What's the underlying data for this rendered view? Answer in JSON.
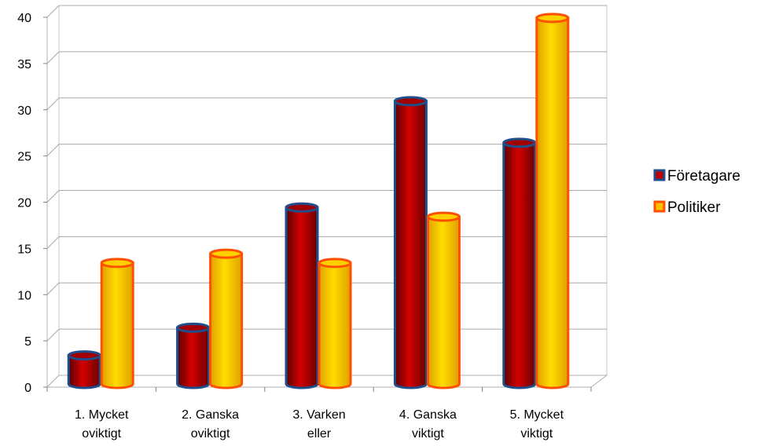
{
  "chart_data": {
    "type": "bar",
    "categories": [
      [
        "1. Mycket",
        "oviktigt"
      ],
      [
        "2. Ganska",
        "oviktigt"
      ],
      [
        "3. Varken",
        "eller"
      ],
      [
        "4. Ganska",
        "viktigt"
      ],
      [
        "5. Mycket",
        "viktigt"
      ]
    ],
    "series": [
      {
        "name": "Företagare",
        "values": [
          3,
          6,
          19,
          30.5,
          26
        ],
        "color": "#c00000",
        "edge": "#1f4e8c"
      },
      {
        "name": "Politiker",
        "values": [
          13,
          14,
          13,
          18,
          39.5
        ],
        "color": "#ffc000",
        "edge": "#ff5000"
      }
    ],
    "yticks": [
      "0",
      "5",
      "10",
      "15",
      "20",
      "25",
      "30",
      "35",
      "40"
    ],
    "ylim": [
      0,
      40
    ],
    "grid": true,
    "legend": "right"
  }
}
